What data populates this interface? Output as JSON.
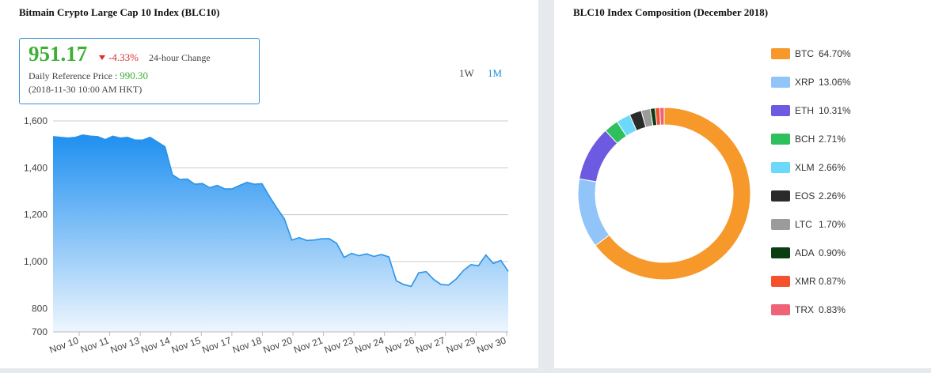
{
  "left_panel": {
    "title": "Bitmain Crypto Large Cap 10 Index (BLC10)",
    "price": "951.17",
    "change": "-4.33%",
    "change_label": "24-hour Change",
    "ref_label": "Daily Reference Price :",
    "ref_value": "990.30",
    "timestamp": "(2018-11-30 10:00 AM HKT)",
    "range_buttons": [
      "1W",
      "1M"
    ],
    "active_range": "1M"
  },
  "right_panel": {
    "title": "BLC10 Index Composition (December 2018)"
  },
  "colors": {
    "line": "#2a93e8",
    "area_top": "#1e8ff0",
    "area_bottom": "#eef6fe",
    "price_green": "#3cb034",
    "change_red": "#d9302c",
    "active_button": "#1d8fe0"
  },
  "chart_data": [
    {
      "type": "area",
      "x_tick_labels": [
        "Nov 10",
        "Nov 11",
        "Nov 13",
        "Nov 14",
        "Nov 15",
        "Nov 17",
        "Nov 18",
        "Nov 20",
        "Nov 21",
        "Nov 23",
        "Nov 24",
        "Nov 26",
        "Nov 27",
        "Nov 29",
        "Nov 30"
      ],
      "y_ticks": [
        700,
        800,
        1000,
        1200,
        1400,
        1600
      ],
      "y_tick_labels": [
        "700",
        "800",
        "1,000",
        "1,200",
        "1,400",
        "1,600"
      ],
      "ylim": [
        700,
        1600
      ],
      "grid": true,
      "values": [
        1533,
        1530,
        1527,
        1530,
        1540,
        1535,
        1533,
        1520,
        1535,
        1527,
        1530,
        1518,
        1518,
        1530,
        1510,
        1490,
        1370,
        1350,
        1352,
        1330,
        1333,
        1315,
        1325,
        1310,
        1310,
        1325,
        1338,
        1330,
        1332,
        1278,
        1228,
        1182,
        1092,
        1102,
        1090,
        1092,
        1097,
        1098,
        1078,
        1018,
        1035,
        1025,
        1033,
        1022,
        1030,
        1020,
        918,
        902,
        894,
        952,
        957,
        924,
        902,
        900,
        925,
        962,
        987,
        982,
        1028,
        992,
        1005,
        958
      ]
    },
    {
      "type": "pie",
      "donut": true,
      "labels": [
        "BTC",
        "XRP",
        "ETH",
        "BCH",
        "XLM",
        "EOS",
        "LTC",
        "ADA",
        "XMR",
        "TRX"
      ],
      "values": [
        64.7,
        13.06,
        10.31,
        2.71,
        2.66,
        2.26,
        1.7,
        0.9,
        0.87,
        0.83
      ],
      "value_labels": [
        "64.70%",
        "13.06%",
        "10.31%",
        "2.71%",
        "2.66%",
        "2.26%",
        "1.70%",
        "0.90%",
        "0.87%",
        "0.83%"
      ],
      "colors": [
        "#f7982a",
        "#91c4f8",
        "#6c5ae0",
        "#2ec05d",
        "#6dd9fa",
        "#2b2b2b",
        "#9b9b9b",
        "#0b3d12",
        "#f4512c",
        "#ee6378"
      ],
      "legend_position": "right"
    }
  ]
}
